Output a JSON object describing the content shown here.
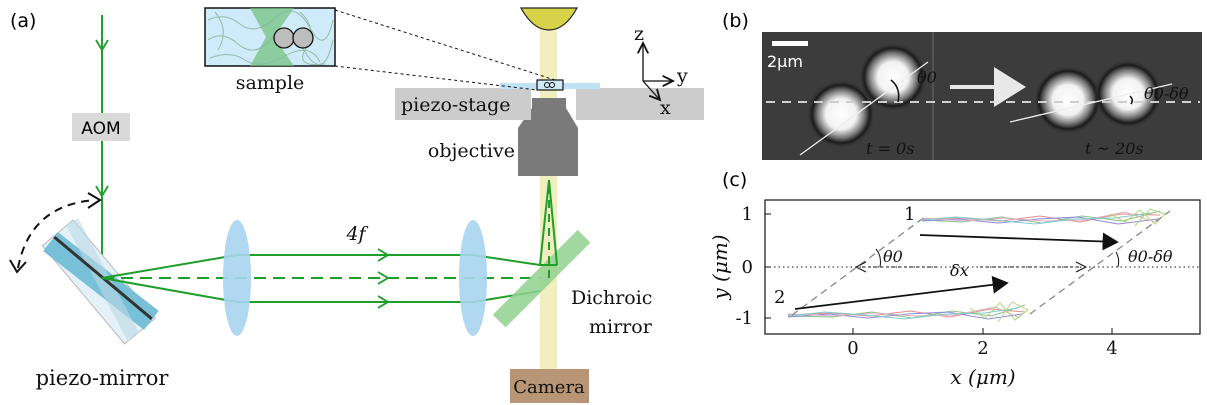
{
  "panel_a": {
    "label": "(a)",
    "aom": "AOM",
    "sample": "sample",
    "piezo_stage": "piezo-stage",
    "objective": "objective",
    "fourf": "4f",
    "dichroic_line1": "Dichroic",
    "dichroic_line2": "mirror",
    "piezo_mirror": "piezo-mirror",
    "camera": "Camera",
    "axis_z": "z",
    "axis_y": "y",
    "axis_x": "x"
  },
  "panel_b": {
    "label": "(b)",
    "scale_bar": "2μm",
    "theta0": "θ0",
    "theta_final": "θ0-δθ",
    "t_start": "t = 0s",
    "t_end": "t ~ 20s"
  },
  "panel_c": {
    "label": "(c)",
    "ylabel": "y (μm)",
    "xlabel": "x (μm)",
    "yticks": [
      "1",
      "0",
      "-1"
    ],
    "xticks": [
      "0",
      "2",
      "4"
    ],
    "particle1": "1",
    "particle2": "2",
    "theta0": "θ0",
    "theta_final": "θ0-δθ",
    "dx": "δx"
  },
  "colors": {
    "beam": "#1f9e2a",
    "lens": "#a8d4f0",
    "camera": "#b89574",
    "stage": "#cccccc",
    "objective": "#7a7a7a",
    "aom_box": "#d9d9d9",
    "dichroic": "#8fd18f",
    "illum": "#f0eec0"
  }
}
